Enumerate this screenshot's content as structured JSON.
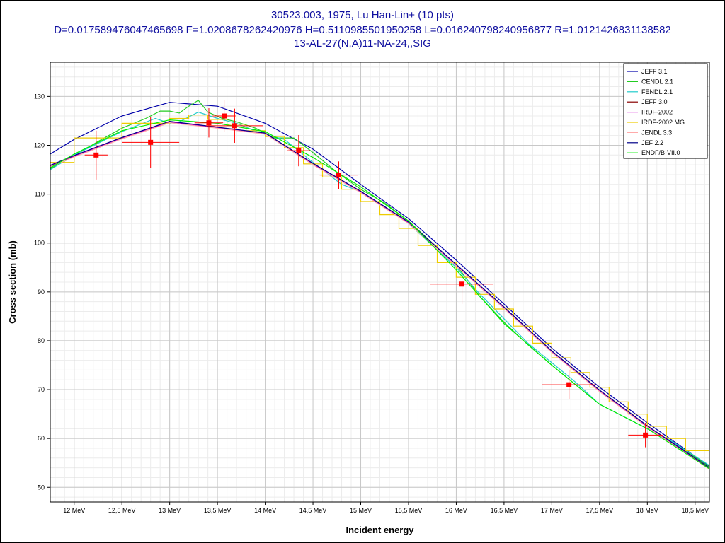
{
  "title_lines": [
    "30523.003, 1975, Lu Han-Lin+ (10 pts)",
    "D=0.017589476047465698 F=1.0208678262420976 H=0.5110985501950258 L=0.016240798240956877 R=1.0121426831138582",
    "13-AL-27(N,A)11-NA-24,,SIG"
  ],
  "chart_data": {
    "type": "line",
    "title": "30523.003, 1975, Lu Han-Lin+ (10 pts)",
    "xlabel": "Incident energy",
    "ylabel": "Cross section (mb)",
    "xlim": [
      11.75,
      18.65
    ],
    "ylim": [
      47,
      137
    ],
    "x_ticks": [
      12,
      12.5,
      13,
      13.5,
      14,
      14.5,
      15,
      15.5,
      16,
      16.5,
      17,
      17.5,
      18,
      18.5
    ],
    "x_tick_labels": [
      "12 MeV",
      "12,5 MeV",
      "13 MeV",
      "13,5 MeV",
      "14 MeV",
      "14,5 MeV",
      "15 MeV",
      "15,5 MeV",
      "16 MeV",
      "16,5 MeV",
      "17 MeV",
      "17,5 MeV",
      "18 MeV",
      "18,5 MeV"
    ],
    "y_ticks": [
      50,
      60,
      70,
      80,
      90,
      100,
      110,
      120,
      130
    ],
    "y_tick_labels": [
      "50",
      "60",
      "70",
      "80",
      "90",
      "100",
      "110",
      "120",
      "130"
    ],
    "grid": true,
    "legend_position": "top-right",
    "series": [
      {
        "name": "JEFF 3.1",
        "color": "#0000aa",
        "x": [
          11.75,
          12,
          12.5,
          13,
          13.5,
          14,
          14.5,
          15,
          15.5,
          16,
          16.5,
          17,
          17.5,
          18,
          18.65
        ],
        "y": [
          118.2,
          121.2,
          126,
          128.8,
          128,
          124.5,
          119.2,
          112,
          105,
          96.5,
          87.5,
          78.5,
          70.5,
          63.2,
          54.3
        ]
      },
      {
        "name": "CENDL 2.1",
        "color": "#22cc22",
        "x": [
          11.75,
          12,
          12.25,
          12.5,
          12.75,
          12.9,
          13,
          13.1,
          13.2,
          13.3,
          13.4,
          13.55,
          13.7,
          13.9,
          14.1,
          14.3,
          14.5,
          14.75,
          15,
          15.25,
          15.5,
          15.75,
          16,
          16.25,
          16.5,
          16.75,
          17,
          17.25,
          17.5,
          17.75,
          18,
          18.25,
          18.65
        ],
        "y": [
          115.2,
          117.8,
          120.8,
          123.5,
          125.5,
          127,
          127,
          126.6,
          128,
          129.2,
          126.8,
          125.5,
          124.8,
          123.5,
          121.5,
          121.5,
          118.5,
          114.5,
          111,
          108.2,
          104.5,
          100,
          95.5,
          89,
          83.8,
          79.2,
          75,
          71,
          67,
          64.5,
          62,
          59.5,
          54.2
        ]
      },
      {
        "name": "FENDL 2.1",
        "color": "#22cccc",
        "x": [
          11.75,
          12,
          12.5,
          12.85,
          13,
          13.1,
          13.3,
          13.5,
          13.7,
          13.95,
          14.2,
          14.5,
          14.8,
          15,
          15.25,
          15.5,
          15.75,
          16,
          16.25,
          16.5,
          16.75,
          17,
          17.25,
          17.5,
          17.75,
          18,
          18.25,
          18.65
        ],
        "y": [
          115,
          118,
          122.8,
          125.5,
          124.5,
          124.8,
          126.8,
          125.5,
          124.5,
          122.5,
          121.2,
          116.5,
          112,
          110.5,
          107.5,
          104,
          99.5,
          95,
          89.5,
          84.5,
          79.5,
          75.5,
          71.5,
          67,
          64.5,
          62,
          59.5,
          54.5
        ]
      },
      {
        "name": "JEFF 3.0",
        "color": "#880000",
        "x": [
          11.75,
          12,
          12.5,
          13,
          13.5,
          14,
          14.5,
          15,
          15.5,
          16,
          16.5,
          17,
          17.5,
          18,
          18.65
        ],
        "y": [
          115.8,
          117.8,
          121.5,
          124.8,
          123.6,
          122.4,
          116.2,
          110.5,
          104.2,
          95.5,
          86.8,
          77.8,
          69.8,
          62.5,
          53.9
        ]
      },
      {
        "name": "IRDF-2002",
        "color": "#cc00cc",
        "x": [
          11.75,
          12,
          12.5,
          13,
          13.5,
          14,
          14.5,
          15,
          15.5,
          16,
          16.5,
          17,
          17.5,
          18,
          18.65
        ],
        "y": [
          115.8,
          117.8,
          121.5,
          124.8,
          123.6,
          122.4,
          116.2,
          110.5,
          104.2,
          95.5,
          86.8,
          77.8,
          69.8,
          62.5,
          53.9
        ]
      },
      {
        "name": "IRDF-2002 MG",
        "color": "#eecc00",
        "x": [
          11.75,
          12,
          12,
          12.5,
          12.5,
          13,
          13,
          13.2,
          13.2,
          13.4,
          13.4,
          13.6,
          13.6,
          13.8,
          13.8,
          14,
          14,
          14.2,
          14.2,
          14.4,
          14.4,
          14.6,
          14.6,
          14.8,
          14.8,
          15,
          15,
          15.2,
          15.2,
          15.4,
          15.4,
          15.6,
          15.6,
          15.8,
          15.8,
          16,
          16,
          16.2,
          16.2,
          16.4,
          16.4,
          16.6,
          16.6,
          16.8,
          16.8,
          17,
          17,
          17.2,
          17.2,
          17.4,
          17.4,
          17.6,
          17.6,
          17.8,
          17.8,
          18,
          18,
          18.2,
          18.2,
          18.4,
          18.4,
          18.65
        ],
        "y": [
          116.5,
          116.5,
          121.5,
          121.5,
          124.5,
          124.5,
          125.5,
          125.5,
          126.2,
          126.2,
          125.3,
          125.3,
          124.3,
          124.3,
          123,
          123,
          121.8,
          121.8,
          119.5,
          119.5,
          116.2,
          116.2,
          113.5,
          113.5,
          111,
          111,
          108.5,
          108.5,
          105.8,
          105.8,
          103,
          103,
          99.5,
          99.5,
          96,
          96,
          93,
          93,
          89.5,
          89.5,
          86.5,
          86.5,
          83,
          83,
          79.5,
          79.5,
          76.5,
          76.5,
          73.5,
          73.5,
          70.5,
          70.5,
          67.5,
          67.5,
          65,
          65,
          62.5,
          62.5,
          60,
          60,
          57.5,
          57.5
        ]
      },
      {
        "name": "JENDL 3.3",
        "color": "#ffaaaa",
        "x": [
          11.75,
          12,
          12.5,
          13,
          13.5,
          14,
          14.5,
          15,
          15.5,
          16,
          16.5,
          17,
          17.5,
          18,
          18.65
        ],
        "y": [
          115.6,
          117.6,
          121.3,
          124.6,
          123.5,
          122.3,
          116,
          110.3,
          104,
          95.3,
          86.6,
          77.6,
          69.6,
          62.3,
          53.7
        ]
      },
      {
        "name": "JEF 2.2",
        "color": "#000088",
        "x": [
          11.75,
          12,
          12.5,
          13,
          13.5,
          14,
          14.5,
          15,
          15.5,
          16,
          16.5,
          17,
          17.5,
          18,
          18.65
        ],
        "y": [
          115.9,
          117.9,
          121.6,
          124.9,
          123.7,
          122.5,
          116.3,
          110.6,
          104.3,
          95.6,
          86.9,
          77.9,
          69.9,
          62.6,
          54
        ]
      },
      {
        "name": "ENDF/B-VII.0",
        "color": "#00ee00",
        "x": [
          11.75,
          12,
          12.5,
          13,
          13.5,
          14,
          14.5,
          15,
          15.5,
          16,
          16.5,
          17,
          17.5,
          18,
          18.65
        ],
        "y": [
          115.4,
          118.2,
          123,
          125.2,
          124.5,
          122.8,
          117.5,
          111.5,
          104.5,
          94.5,
          83.5,
          75,
          67,
          62,
          53.8
        ]
      }
    ],
    "points": {
      "name": "30523.003",
      "color": "#ff0000",
      "x": [
        12.23,
        12.8,
        13.41,
        13.57,
        13.68,
        14.35,
        14.77,
        16.06,
        17.18,
        17.98
      ],
      "y": [
        118,
        120.6,
        124.6,
        126,
        124,
        118.9,
        113.9,
        91.6,
        71,
        60.7
      ],
      "xerr": [
        0.12,
        0.3,
        0.15,
        0.12,
        0.3,
        0.12,
        0.2,
        0.33,
        0.28,
        0.18
      ],
      "yerr": [
        5,
        5.2,
        3,
        3.2,
        3.5,
        3.2,
        2.8,
        4.1,
        3,
        2.5
      ]
    }
  }
}
